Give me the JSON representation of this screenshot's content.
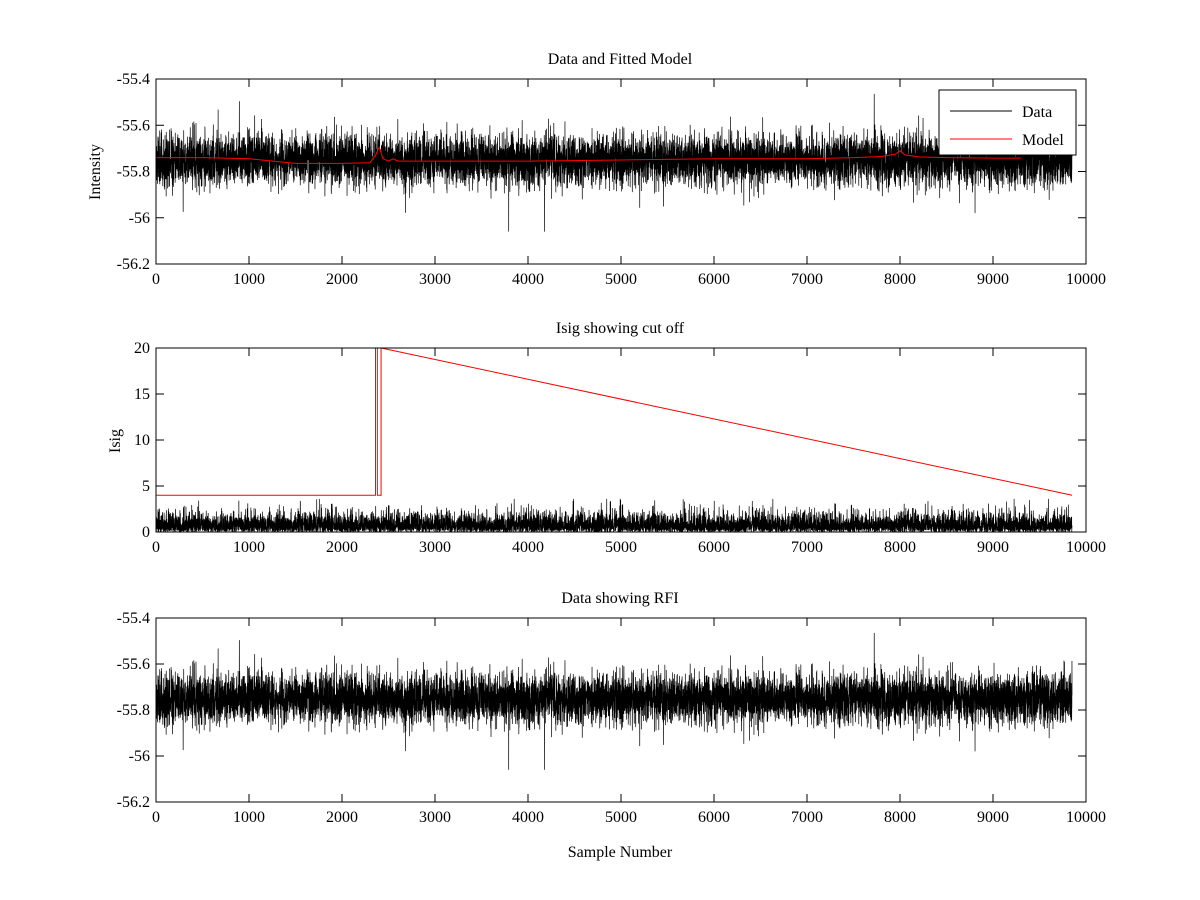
{
  "figure": {
    "background": "#ffffff",
    "data_color": "#000000",
    "model_color": "#ff0000"
  },
  "chart_data": [
    {
      "type": "line",
      "title": "Data and Fitted Model",
      "xlabel": "",
      "ylabel": "Intensity",
      "xlim": [
        0,
        10000
      ],
      "ylim": [
        -56.2,
        -55.4
      ],
      "xticks": [
        0,
        1000,
        2000,
        3000,
        4000,
        5000,
        6000,
        7000,
        8000,
        9000,
        10000
      ],
      "yticks": [
        -55.4,
        -55.6,
        -55.8,
        -56,
        -56.2
      ],
      "xtick_labels": [
        "0",
        "1000",
        "2000",
        "3000",
        "4000",
        "5000",
        "6000",
        "7000",
        "8000",
        "9000",
        "10000"
      ],
      "ytick_labels": [
        "-55.4",
        "-55.6",
        "-55.8",
        "-56",
        "-56.2"
      ],
      "grid": false,
      "legend": "top-right",
      "noise": {
        "n": 9850,
        "center": -55.75,
        "sigma": 0.055,
        "clip": [
          -56.06,
          -55.44
        ],
        "seed": 11
      },
      "series": [
        {
          "name": "Data",
          "kind": "noise",
          "color": "#000000",
          "x_range": [
            0,
            9850
          ],
          "description_points": []
        },
        {
          "name": "Model",
          "kind": "line",
          "color": "#ff0000",
          "x": [
            0,
            500,
            1000,
            1500,
            2000,
            2300,
            2360,
            2400,
            2440,
            2500,
            2550,
            2600,
            3000,
            4000,
            5000,
            6000,
            7000,
            7500,
            7800,
            7950,
            8000,
            8050,
            8200,
            8500,
            9000,
            9300
          ],
          "y": [
            -55.74,
            -55.74,
            -55.745,
            -55.765,
            -55.765,
            -55.762,
            -55.73,
            -55.695,
            -55.745,
            -55.755,
            -55.745,
            -55.755,
            -55.755,
            -55.755,
            -55.75,
            -55.745,
            -55.745,
            -55.74,
            -55.735,
            -55.725,
            -55.71,
            -55.728,
            -55.737,
            -55.74,
            -55.742,
            -55.742
          ]
        }
      ]
    },
    {
      "type": "line",
      "title": "Isig showing cut off",
      "xlabel": "",
      "ylabel": "Isig",
      "xlim": [
        0,
        10000
      ],
      "ylim": [
        0,
        20
      ],
      "xticks": [
        0,
        1000,
        2000,
        3000,
        4000,
        5000,
        6000,
        7000,
        8000,
        9000,
        10000
      ],
      "yticks": [
        0,
        5,
        10,
        15,
        20
      ],
      "xtick_labels": [
        "0",
        "1000",
        "2000",
        "3000",
        "4000",
        "5000",
        "6000",
        "7000",
        "8000",
        "9000",
        "10000"
      ],
      "ytick_labels": [
        "0",
        "5",
        "10",
        "15",
        "20"
      ],
      "grid": false,
      "noise": {
        "n": 9850,
        "center": 0.0,
        "sigma": 1.0,
        "clip": [
          0,
          3.6
        ],
        "seed": 23,
        "absolute": true
      },
      "series": [
        {
          "kind": "noise",
          "color": "#000000",
          "x_range": [
            0,
            9850
          ]
        },
        {
          "kind": "line",
          "color": "#ff0000",
          "x": [
            0,
            2360,
            2360,
            2380,
            2380,
            2420,
            2420,
            9850
          ],
          "y": [
            4,
            4,
            20,
            20,
            4,
            4,
            20,
            4
          ]
        }
      ],
      "cutoff": 4,
      "spike_x": [
        2370,
        2410
      ]
    },
    {
      "type": "line",
      "title": "Data showing RFI",
      "xlabel": "Sample Number",
      "ylabel": "",
      "xlim": [
        0,
        10000
      ],
      "ylim": [
        -56.2,
        -55.4
      ],
      "xticks": [
        0,
        1000,
        2000,
        3000,
        4000,
        5000,
        6000,
        7000,
        8000,
        9000,
        10000
      ],
      "yticks": [
        -55.4,
        -55.6,
        -55.8,
        -56,
        -56.2
      ],
      "xtick_labels": [
        "0",
        "1000",
        "2000",
        "3000",
        "4000",
        "5000",
        "6000",
        "7000",
        "8000",
        "9000",
        "10000"
      ],
      "ytick_labels": [
        "-55.4",
        "-55.6",
        "-55.8",
        "-56",
        "-56.2"
      ],
      "grid": false,
      "noise": {
        "n": 9850,
        "center": -55.75,
        "sigma": 0.055,
        "clip": [
          -56.06,
          -55.44
        ],
        "seed": 11
      },
      "series": [
        {
          "kind": "noise",
          "color": "#000000",
          "x_range": [
            0,
            9850
          ]
        }
      ]
    }
  ]
}
